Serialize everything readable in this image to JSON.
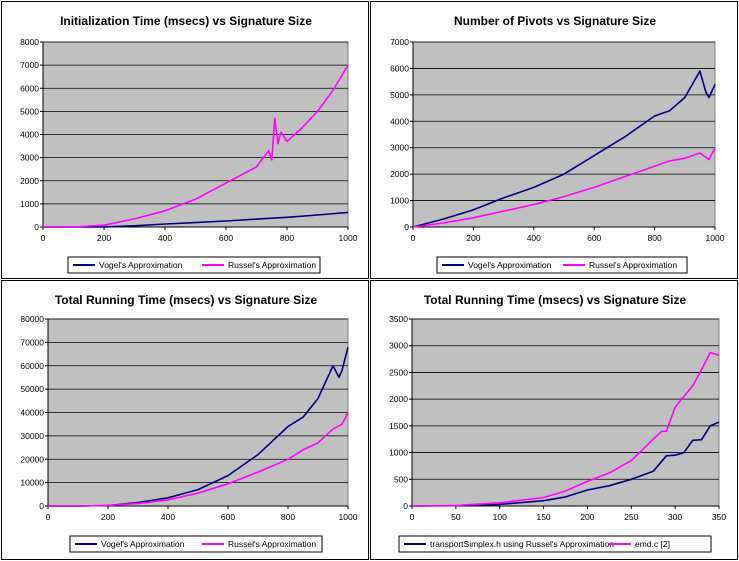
{
  "chart_data": [
    {
      "type": "line",
      "title": "Initialization Time (msecs) vs Signature Size",
      "xlabel": "",
      "ylabel": "",
      "xlim": [
        0,
        1000
      ],
      "ylim": [
        0,
        8000
      ],
      "xticks": [
        0,
        200,
        400,
        600,
        800,
        1000
      ],
      "yticks": [
        0,
        1000,
        2000,
        3000,
        4000,
        5000,
        6000,
        7000,
        8000
      ],
      "grid": true,
      "legend": "bottom",
      "series": [
        {
          "name": "Vogel's Approximation",
          "color": "#000080",
          "x": [
            0,
            100,
            200,
            300,
            400,
            500,
            600,
            700,
            800,
            900,
            1000
          ],
          "y": [
            0,
            0,
            5,
            50,
            130,
            190,
            260,
            340,
            420,
            520,
            630
          ]
        },
        {
          "name": "Russel's Approximation",
          "color": "#ff00ff",
          "x": [
            0,
            100,
            200,
            300,
            400,
            500,
            600,
            700,
            740,
            750,
            760,
            770,
            780,
            800,
            850,
            900,
            950,
            1000
          ],
          "y": [
            0,
            0,
            80,
            350,
            700,
            1200,
            1900,
            2600,
            3300,
            2900,
            4700,
            3600,
            4100,
            3700,
            4300,
            5000,
            5900,
            7000
          ]
        }
      ]
    },
    {
      "type": "line",
      "title": "Number of Pivots vs Signature Size",
      "xlabel": "",
      "ylabel": "",
      "xlim": [
        0,
        1000
      ],
      "ylim": [
        0,
        7000
      ],
      "xticks": [
        0,
        200,
        400,
        600,
        800,
        1000
      ],
      "yticks": [
        0,
        1000,
        2000,
        3000,
        4000,
        5000,
        6000,
        7000
      ],
      "grid": true,
      "legend": "bottom",
      "series": [
        {
          "name": "Vogel's Approximation",
          "color": "#000080",
          "x": [
            0,
            100,
            200,
            300,
            400,
            500,
            600,
            700,
            800,
            850,
            900,
            950,
            970,
            980,
            1000
          ],
          "y": [
            0,
            300,
            650,
            1100,
            1500,
            2000,
            2700,
            3400,
            4200,
            4400,
            4900,
            5900,
            5100,
            4900,
            5400
          ]
        },
        {
          "name": "Russel's Approximation",
          "color": "#ff00ff",
          "x": [
            0,
            100,
            200,
            300,
            400,
            500,
            600,
            700,
            800,
            850,
            900,
            950,
            980,
            1000
          ],
          "y": [
            0,
            150,
            350,
            600,
            850,
            1150,
            1500,
            1900,
            2300,
            2500,
            2600,
            2800,
            2550,
            3000
          ]
        }
      ]
    },
    {
      "type": "line",
      "title": "Total Running Time (msecs) vs Signature Size",
      "xlabel": "",
      "ylabel": "",
      "xlim": [
        0,
        1000
      ],
      "ylim": [
        0,
        80000
      ],
      "xticks": [
        0,
        200,
        400,
        600,
        800,
        1000
      ],
      "yticks": [
        0,
        10000,
        20000,
        30000,
        40000,
        50000,
        60000,
        70000,
        80000
      ],
      "grid": true,
      "legend": "bottom",
      "series": [
        {
          "name": "Vogel's Approximation",
          "color": "#000080",
          "x": [
            0,
            100,
            200,
            300,
            400,
            500,
            600,
            700,
            800,
            850,
            900,
            950,
            970,
            980,
            1000
          ],
          "y": [
            0,
            0,
            200,
            1500,
            3500,
            7000,
            13000,
            22000,
            34000,
            38000,
            46000,
            60000,
            55000,
            58000,
            68000
          ]
        },
        {
          "name": "Russel's Approximation",
          "color": "#ff00ff",
          "x": [
            0,
            100,
            200,
            300,
            400,
            500,
            600,
            700,
            800,
            850,
            900,
            950,
            980,
            1000
          ],
          "y": [
            0,
            0,
            200,
            1100,
            2600,
            5500,
            9500,
            14500,
            20000,
            24000,
            27000,
            33000,
            35000,
            40000
          ]
        }
      ]
    },
    {
      "type": "line",
      "title": "Total Running Time (msecs) vs Signature Size",
      "xlabel": "",
      "ylabel": "",
      "xlim": [
        0,
        350
      ],
      "ylim": [
        0,
        3500
      ],
      "xticks": [
        0,
        50,
        100,
        150,
        200,
        250,
        300,
        350
      ],
      "yticks": [
        0,
        500,
        1000,
        1500,
        2000,
        2500,
        3000,
        3500
      ],
      "grid": true,
      "legend": "bottom",
      "series": [
        {
          "name": "transportSimplex.h using Russel's Approximation",
          "color": "#000080",
          "x": [
            0,
            50,
            100,
            150,
            175,
            200,
            225,
            250,
            275,
            290,
            300,
            310,
            320,
            330,
            340,
            350
          ],
          "y": [
            0,
            5,
            30,
            100,
            170,
            300,
            380,
            500,
            650,
            940,
            950,
            1000,
            1230,
            1240,
            1500,
            1570
          ]
        },
        {
          "name": "emd.c [2]",
          "color": "#ff00ff",
          "x": [
            0,
            50,
            100,
            150,
            175,
            200,
            225,
            250,
            275,
            285,
            290,
            300,
            320,
            330,
            340,
            350
          ],
          "y": [
            0,
            10,
            60,
            160,
            280,
            460,
            620,
            850,
            1250,
            1400,
            1400,
            1850,
            2250,
            2550,
            2870,
            2820
          ]
        }
      ]
    }
  ]
}
